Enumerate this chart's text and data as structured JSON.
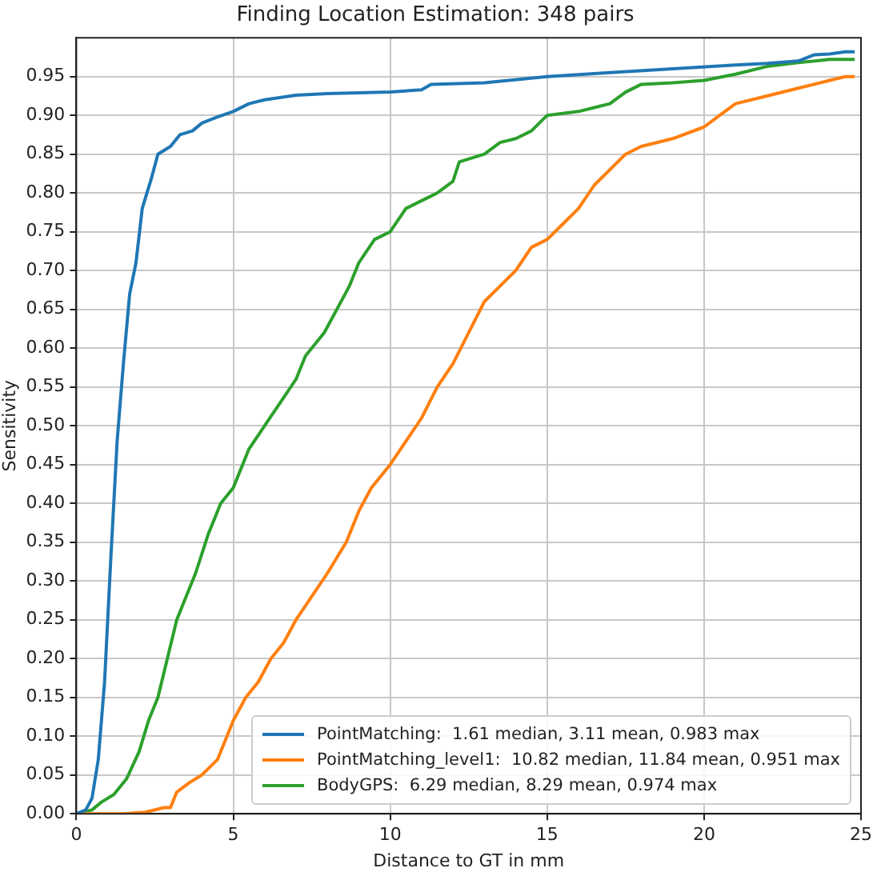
{
  "chart_data": {
    "type": "line",
    "title": "Finding Location Estimation: 348 pairs",
    "xlabel": "Distance to GT in mm",
    "ylabel": "Sensitivity",
    "xlim": [
      0,
      25
    ],
    "xticks": [
      0,
      5,
      10,
      15,
      20,
      25
    ],
    "ylim": [
      0,
      1
    ],
    "yticks": [
      {
        "value": 0,
        "label": "0.00"
      },
      0.05,
      {
        "value": 0.1,
        "label": "0.10"
      },
      0.15,
      {
        "value": 0.2,
        "label": "0.20"
      },
      0.25,
      {
        "value": 0.3,
        "label": "0.30"
      },
      0.35,
      {
        "value": 0.4,
        "label": "0.40"
      },
      0.45,
      {
        "value": 0.5,
        "label": "0.50"
      },
      0.55,
      {
        "value": 0.6,
        "label": "0.60"
      },
      0.65,
      {
        "value": 0.7,
        "label": "0.70"
      },
      0.75,
      {
        "value": 0.8,
        "label": "0.80"
      },
      0.85,
      {
        "value": 0.9,
        "label": "0.90"
      },
      0.95
    ],
    "grid": true,
    "legend": "bottom right",
    "line_style": "solid",
    "marker": "none",
    "series": [
      {
        "name": "PointMatching:  1.61 median, 3.11 mean, 0.983 max",
        "color": "#1f77b4",
        "x": [
          0,
          0.3,
          0.5,
          0.7,
          0.9,
          1.1,
          1.3,
          1.5,
          1.7,
          1.9,
          2.1,
          2.4,
          2.6,
          3.0,
          3.3,
          3.7,
          4.0,
          4.5,
          5.0,
          5.5,
          6.0,
          7.0,
          8.0,
          10.0,
          11.0,
          11.3,
          13.0,
          15.0,
          17.0,
          19.0,
          21.0,
          22.0,
          23.0,
          23.5,
          24.0,
          24.5,
          24.8
        ],
        "values": [
          0,
          0.005,
          0.02,
          0.07,
          0.17,
          0.33,
          0.48,
          0.58,
          0.67,
          0.71,
          0.78,
          0.82,
          0.85,
          0.86,
          0.875,
          0.88,
          0.89,
          0.898,
          0.905,
          0.915,
          0.92,
          0.926,
          0.928,
          0.93,
          0.933,
          0.94,
          0.942,
          0.95,
          0.955,
          0.96,
          0.965,
          0.967,
          0.97,
          0.978,
          0.979,
          0.982,
          0.982
        ]
      },
      {
        "name": "PointMatching_level1:  10.82 median, 11.84 mean, 0.951 max",
        "color": "#ff7f0e",
        "x": [
          0,
          1.5,
          2.2,
          2.8,
          3.0,
          3.2,
          3.6,
          4.0,
          4.5,
          4.8,
          5.0,
          5.4,
          5.8,
          6.2,
          6.6,
          7.0,
          7.5,
          8.0,
          8.6,
          9.0,
          9.4,
          10.0,
          10.5,
          11.0,
          11.5,
          12.0,
          12.5,
          13.0,
          13.5,
          14.0,
          14.5,
          15.0,
          15.5,
          16.0,
          16.5,
          17.0,
          17.5,
          18.0,
          19.0,
          20.0,
          20.5,
          21.0,
          22.0,
          23.0,
          24.0,
          24.5,
          24.8
        ],
        "values": [
          0,
          0,
          0.002,
          0.008,
          0.008,
          0.028,
          0.04,
          0.05,
          0.07,
          0.1,
          0.12,
          0.15,
          0.17,
          0.2,
          0.22,
          0.25,
          0.28,
          0.31,
          0.35,
          0.39,
          0.42,
          0.45,
          0.48,
          0.51,
          0.55,
          0.58,
          0.62,
          0.66,
          0.68,
          0.7,
          0.73,
          0.74,
          0.76,
          0.78,
          0.81,
          0.83,
          0.85,
          0.86,
          0.87,
          0.885,
          0.9,
          0.915,
          0.925,
          0.935,
          0.945,
          0.95,
          0.95
        ]
      },
      {
        "name": "BodyGPS:  6.29 median, 8.29 mean, 0.974 max",
        "color": "#2ca02c",
        "x": [
          0,
          0.5,
          0.8,
          1.2,
          1.6,
          2.0,
          2.3,
          2.6,
          2.9,
          3.2,
          3.5,
          3.8,
          4.2,
          4.6,
          5.0,
          5.5,
          6.0,
          6.5,
          7.0,
          7.3,
          7.9,
          8.3,
          8.7,
          9.0,
          9.5,
          10.0,
          10.5,
          11.0,
          11.5,
          12.0,
          12.2,
          13.0,
          13.5,
          14.0,
          14.5,
          15.0,
          16.0,
          16.5,
          17.0,
          17.5,
          18.0,
          19.0,
          20.0,
          21.0,
          22.0,
          23.0,
          24.0,
          24.8
        ],
        "values": [
          0,
          0.005,
          0.015,
          0.025,
          0.045,
          0.08,
          0.12,
          0.15,
          0.2,
          0.25,
          0.28,
          0.31,
          0.36,
          0.4,
          0.42,
          0.47,
          0.5,
          0.53,
          0.56,
          0.59,
          0.62,
          0.65,
          0.68,
          0.71,
          0.74,
          0.75,
          0.78,
          0.79,
          0.8,
          0.815,
          0.84,
          0.85,
          0.865,
          0.87,
          0.88,
          0.9,
          0.905,
          0.91,
          0.915,
          0.93,
          0.94,
          0.942,
          0.945,
          0.953,
          0.963,
          0.968,
          0.972,
          0.972
        ]
      }
    ]
  }
}
